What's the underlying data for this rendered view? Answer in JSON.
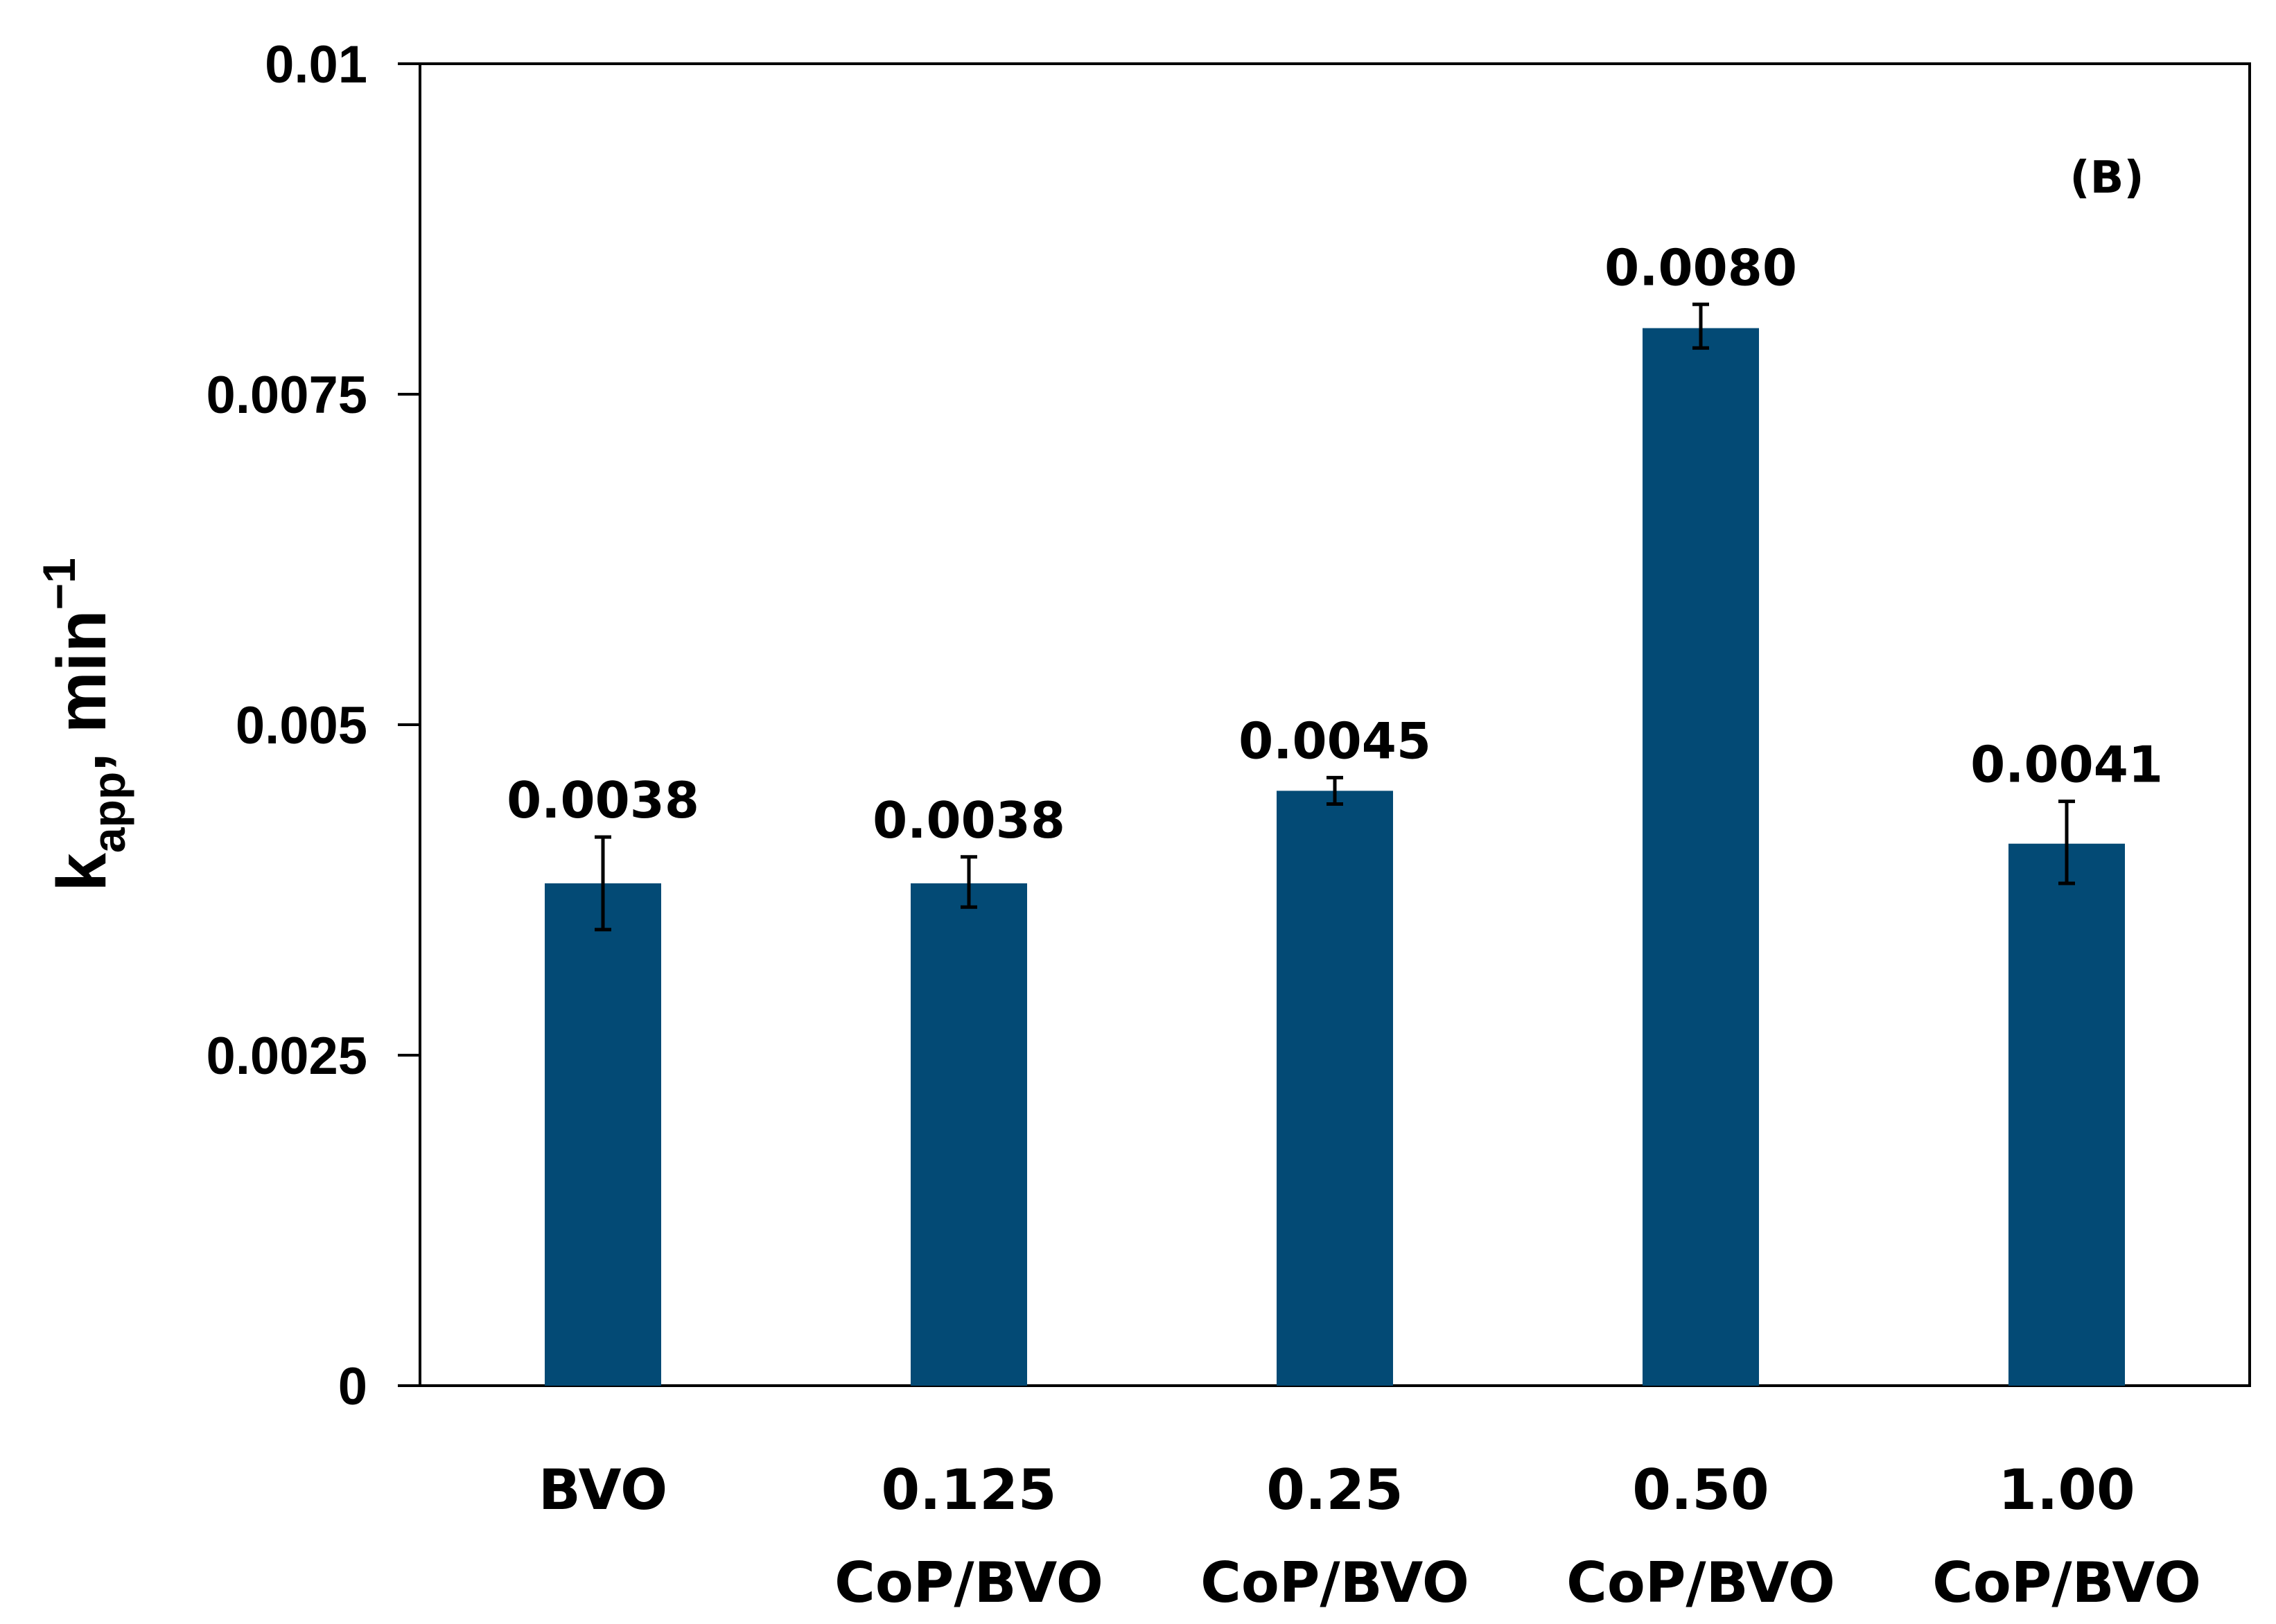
{
  "chart_data": {
    "type": "bar",
    "panel_label": "(B)",
    "categories": [
      {
        "line1": "BVO",
        "line2": ""
      },
      {
        "line1": "0.125",
        "line2": "CoP/BVO"
      },
      {
        "line1": "0.25",
        "line2": "CoP/BVO"
      },
      {
        "line1": "0.50",
        "line2": "CoP/BVO"
      },
      {
        "line1": "1.00",
        "line2": "CoP/BVO"
      }
    ],
    "values": [
      0.0038,
      0.0038,
      0.0045,
      0.008,
      0.0041
    ],
    "data_labels": [
      "0.0038",
      "0.0038",
      "0.0045",
      "0.0080",
      "0.0041"
    ],
    "error_low": [
      0.00345,
      0.00362,
      0.0044,
      0.00785,
      0.0038
    ],
    "error_high": [
      0.00415,
      0.004,
      0.0046,
      0.00818,
      0.00442
    ],
    "ylabel": {
      "main": "k",
      "sub": "app",
      "rest": ", min",
      "sup": "−1"
    },
    "ylim": [
      0,
      0.01
    ],
    "yticks": [
      0,
      0.0025,
      0.005,
      0.0075,
      0.01
    ],
    "ytick_labels": [
      "0",
      "0.0025",
      "0.005",
      "0.0075",
      "0.01"
    ],
    "bar_color": "#034a75",
    "grid": false
  }
}
